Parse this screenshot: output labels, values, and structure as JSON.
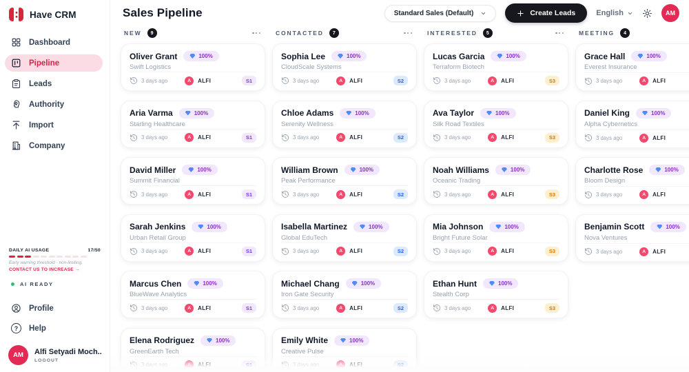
{
  "app": {
    "logo_text": "Have CRM"
  },
  "accent_color": "#e11d48",
  "sidebar": {
    "nav": [
      {
        "label": "Dashboard",
        "icon": "grid-icon",
        "active": false
      },
      {
        "label": "Pipeline",
        "icon": "kanban-icon",
        "active": true
      },
      {
        "label": "Leads",
        "icon": "clipboard-icon",
        "active": false
      },
      {
        "label": "Authority",
        "icon": "authority-icon",
        "active": false
      },
      {
        "label": "Import",
        "icon": "upload-icon",
        "active": false
      },
      {
        "label": "Company",
        "icon": "building-icon",
        "active": false
      }
    ],
    "usage": {
      "label": "DAILY AI USAGE",
      "value": "17/50",
      "segments_total": 10,
      "segments_filled": 3,
      "warning": "Early warning threshold - non-limiting.",
      "cta": "CONTACT US TO INCREASE →"
    },
    "ai_status": "AI READY",
    "status_dot_color": "#2fbf71",
    "footer_nav": [
      {
        "label": "Profile",
        "icon": "user-circle-icon"
      },
      {
        "label": "Help",
        "icon": "question-circle-icon"
      }
    ],
    "user": {
      "initials": "AM",
      "name": "Alfi Setyadi Moch...",
      "logout_label": "LOGOUT"
    }
  },
  "header": {
    "title": "Sales Pipeline",
    "pipeline_select": "Standard Sales (Default)",
    "create_button": "Create Leads",
    "language": "English",
    "avatar_initials": "AM"
  },
  "board": {
    "card_defaults": {
      "score": "100%",
      "time": "3 days ago",
      "owner": "ALFI",
      "owner_initial": "A"
    },
    "columns": [
      {
        "label": "NEW",
        "count": "9",
        "stage": {
          "tag": "S1",
          "color": "#7c3aed",
          "bg": "#f1e8fe"
        },
        "cards": [
          {
            "name": "Oliver Grant",
            "company": "Swift Logistics"
          },
          {
            "name": "Aria Varma",
            "company": "Starling Healthcare"
          },
          {
            "name": "David Miller",
            "company": "Summit Financial"
          },
          {
            "name": "Sarah Jenkins",
            "company": "Urban Retail Group"
          },
          {
            "name": "Marcus Chen",
            "company": "BlueWave Analytics"
          },
          {
            "name": "Elena Rodriguez",
            "company": "GreenEarth Tech"
          }
        ]
      },
      {
        "label": "CONTACTED",
        "count": "7",
        "stage": {
          "tag": "S2",
          "color": "#2563eb",
          "bg": "#dbeafe"
        },
        "cards": [
          {
            "name": "Sophia Lee",
            "company": "CloudScale Systems"
          },
          {
            "name": "Chloe Adams",
            "company": "Serenity Wellness"
          },
          {
            "name": "William Brown",
            "company": "Peak Performance"
          },
          {
            "name": "Isabella Martinez",
            "company": "Global EduTech"
          },
          {
            "name": "Michael Chang",
            "company": "Iron Gate Security"
          },
          {
            "name": "Emily White",
            "company": "Creative Pulse"
          }
        ]
      },
      {
        "label": "INTERESTED",
        "count": "5",
        "stage": {
          "tag": "S3",
          "color": "#d97706",
          "bg": "#fdf0d0"
        },
        "cards": [
          {
            "name": "Lucas Garcia",
            "company": "Terraform Biotech"
          },
          {
            "name": "Ava Taylor",
            "company": "Silk Road Textiles"
          },
          {
            "name": "Noah Williams",
            "company": "Oceanic Trading"
          },
          {
            "name": "Mia Johnson",
            "company": "Bright Future Solar"
          },
          {
            "name": "Ethan Hunt",
            "company": "Stealth Corp"
          }
        ]
      },
      {
        "label": "MEETING",
        "count": "4",
        "stage": null,
        "cards": [
          {
            "name": "Grace Hall",
            "company": "Everest Insurance"
          },
          {
            "name": "Daniel King",
            "company": "Alpha Cybernetics"
          },
          {
            "name": "Charlotte Rose",
            "company": "Bloom Design"
          },
          {
            "name": "Benjamin Scott",
            "company": "Nova Ventures"
          }
        ]
      }
    ]
  }
}
